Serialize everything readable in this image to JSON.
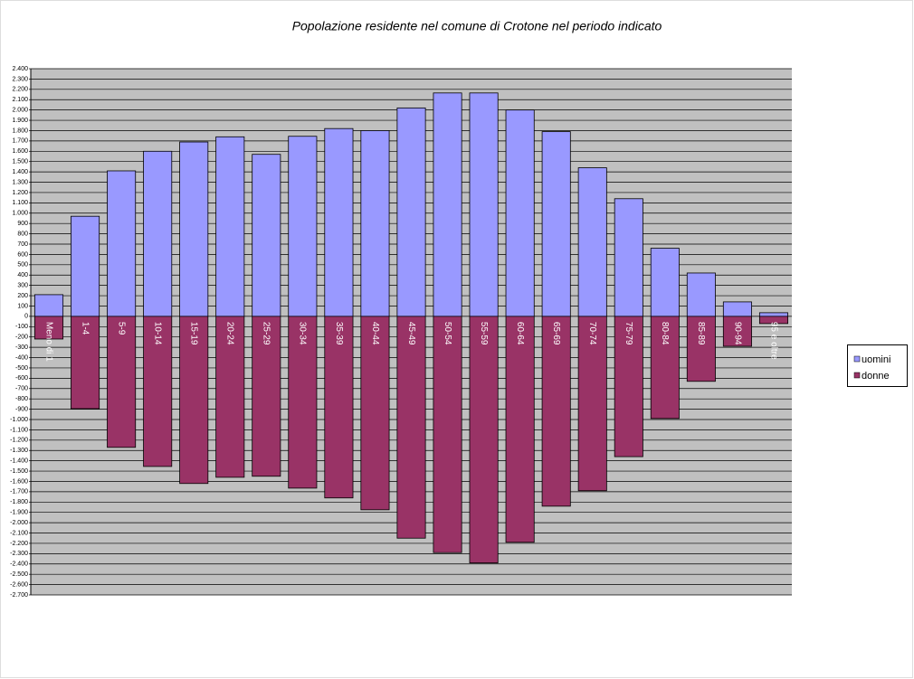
{
  "chart_data": {
    "type": "bar",
    "title": "Popolazione residente nel comune di Crotone nel periodo indicato",
    "categories": [
      "Meno di 1",
      "1-4",
      "5-9",
      "10-14",
      "15-19",
      "20-24",
      "25-29",
      "30-34",
      "35-39",
      "40-44",
      "45-49",
      "50-54",
      "55-59",
      "60-64",
      "65-69",
      "70-74",
      "75-79",
      "80-84",
      "85-89",
      "90-94",
      "95 e oltre"
    ],
    "series": [
      {
        "name": "uomini",
        "color": "#9999ff",
        "values": [
          210,
          970,
          1410,
          1600,
          1690,
          1740,
          1570,
          1745,
          1820,
          1800,
          2020,
          2165,
          2165,
          2000,
          1790,
          1440,
          1140,
          660,
          420,
          140,
          35
        ]
      },
      {
        "name": "donne",
        "color": "#993366",
        "values": [
          -220,
          -895,
          -1270,
          -1455,
          -1620,
          -1560,
          -1550,
          -1665,
          -1760,
          -1875,
          -2150,
          -2290,
          -2390,
          -2190,
          -1840,
          -1690,
          -1360,
          -990,
          -630,
          -290,
          -70
        ]
      }
    ],
    "ylim": [
      -2700,
      2400
    ],
    "yticks": [
      {
        "value": 2400,
        "label": "2.400"
      },
      {
        "value": 2300,
        "label": "2.300"
      },
      {
        "value": 2200,
        "label": "2.200"
      },
      {
        "value": 2100,
        "label": "2.100"
      },
      {
        "value": 2000,
        "label": "2.000"
      },
      {
        "value": 1900,
        "label": "1.900"
      },
      {
        "value": 1800,
        "label": "1.800"
      },
      {
        "value": 1700,
        "label": "1.700"
      },
      {
        "value": 1600,
        "label": "1.600"
      },
      {
        "value": 1500,
        "label": "1.500"
      },
      {
        "value": 1400,
        "label": "1.400"
      },
      {
        "value": 1300,
        "label": "1.300"
      },
      {
        "value": 1200,
        "label": "1.200"
      },
      {
        "value": 1100,
        "label": "1.100"
      },
      {
        "value": 1000,
        "label": "1.000"
      },
      900,
      800,
      700,
      600,
      500,
      400,
      300,
      200,
      100,
      0,
      -100,
      -200,
      -300,
      -400,
      -500,
      -600,
      -700,
      -800,
      -900,
      {
        "value": -1000,
        "label": "-1.000"
      },
      {
        "value": -1100,
        "label": "-1.100"
      },
      {
        "value": -1200,
        "label": "-1.200"
      },
      {
        "value": -1300,
        "label": "-1.300"
      },
      {
        "value": -1400,
        "label": "-1.400"
      },
      {
        "value": -1500,
        "label": "-1.500"
      },
      {
        "value": -1600,
        "label": "-1.600"
      },
      {
        "value": -1700,
        "label": "-1.700"
      },
      {
        "value": -1800,
        "label": "-1.800"
      },
      {
        "value": -1900,
        "label": "-1.900"
      },
      {
        "value": -2000,
        "label": "-2.000"
      },
      {
        "value": -2100,
        "label": "-2.100"
      },
      {
        "value": -2200,
        "label": "-2.200"
      },
      {
        "value": -2300,
        "label": "-2.300"
      },
      {
        "value": -2400,
        "label": "-2.400"
      },
      {
        "value": -2500,
        "label": "-2.500"
      },
      {
        "value": -2600,
        "label": "-2.600"
      },
      {
        "value": -2700,
        "label": "-2.700"
      }
    ],
    "grid": true,
    "plot_background": "#c0c0c0"
  }
}
